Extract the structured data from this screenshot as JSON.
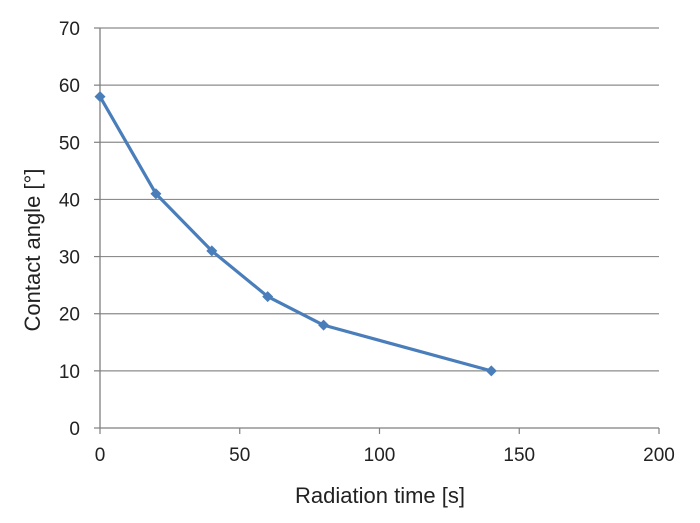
{
  "colors": {
    "series": "#4a7ebb",
    "grid": "#8c8c8c",
    "axis": "#7f7f7f",
    "text": "#222222"
  },
  "chart_data": {
    "type": "line",
    "title": "",
    "xlabel": "Radiation time  [s]",
    "ylabel": "Contact angle  [°]",
    "xlim": [
      0,
      200
    ],
    "ylim": [
      0,
      70
    ],
    "xticks": [
      0,
      50,
      100,
      150,
      200
    ],
    "yticks": [
      0,
      10,
      20,
      30,
      40,
      50,
      60,
      70
    ],
    "grid": "horizontal",
    "legend": "none",
    "series": [
      {
        "name": "Contact angle",
        "marker": "diamond",
        "x": [
          0,
          20,
          40,
          60,
          80,
          140
        ],
        "y": [
          58,
          41,
          31,
          23,
          18,
          10
        ]
      }
    ]
  }
}
